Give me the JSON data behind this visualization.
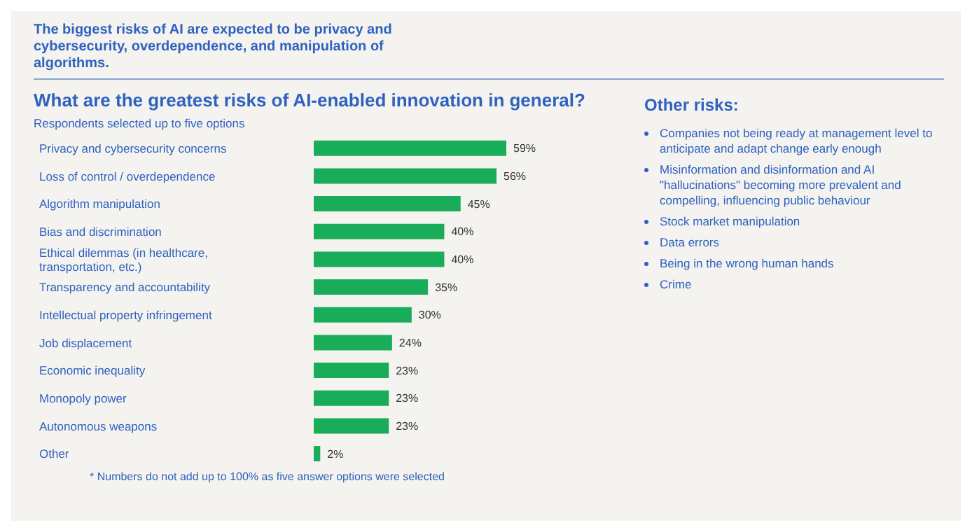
{
  "chart_data": {
    "type": "bar",
    "orientation": "horizontal",
    "title": "What are the greatest risks of AI-enabled innovation in general?",
    "subtitle": "Respondents selected up to five options",
    "categories": [
      "Privacy and cybersecurity concerns",
      "Loss of control / overdependence",
      "Algorithm manipulation",
      "Bias and discrimination",
      "Ethical dilemmas (in healthcare, transportation, etc.)",
      "Transparency and accountability",
      "Intellectual property infringement",
      "Job displacement",
      "Economic inequality",
      "Monopoly power",
      "Autonomous weapons",
      "Other"
    ],
    "values": [
      59,
      56,
      45,
      40,
      40,
      35,
      30,
      24,
      23,
      23,
      23,
      2
    ],
    "value_labels": [
      "59%",
      "56%",
      "45%",
      "40%",
      "40%",
      "35%",
      "30%",
      "24%",
      "23%",
      "23%",
      "23%",
      "2%"
    ],
    "color": "#19ad5a",
    "annotations": [
      "The biggest risks of AI are expected to be privacy and cybersecurity, overdependence, and manipulation of algorithms.",
      "* Numbers do not add up to 100% as five answer options were selected",
      "Other risks:",
      "Companies not being ready at management level to anticipate and adapt change early enough",
      "Misinformation and disinformation and AI \"hallucinations\" becoming more prevalent and compelling, influencing public behaviour",
      "Stock market manipulation",
      "Data errors",
      "Being in the wrong human hands",
      "Crime"
    ]
  }
}
